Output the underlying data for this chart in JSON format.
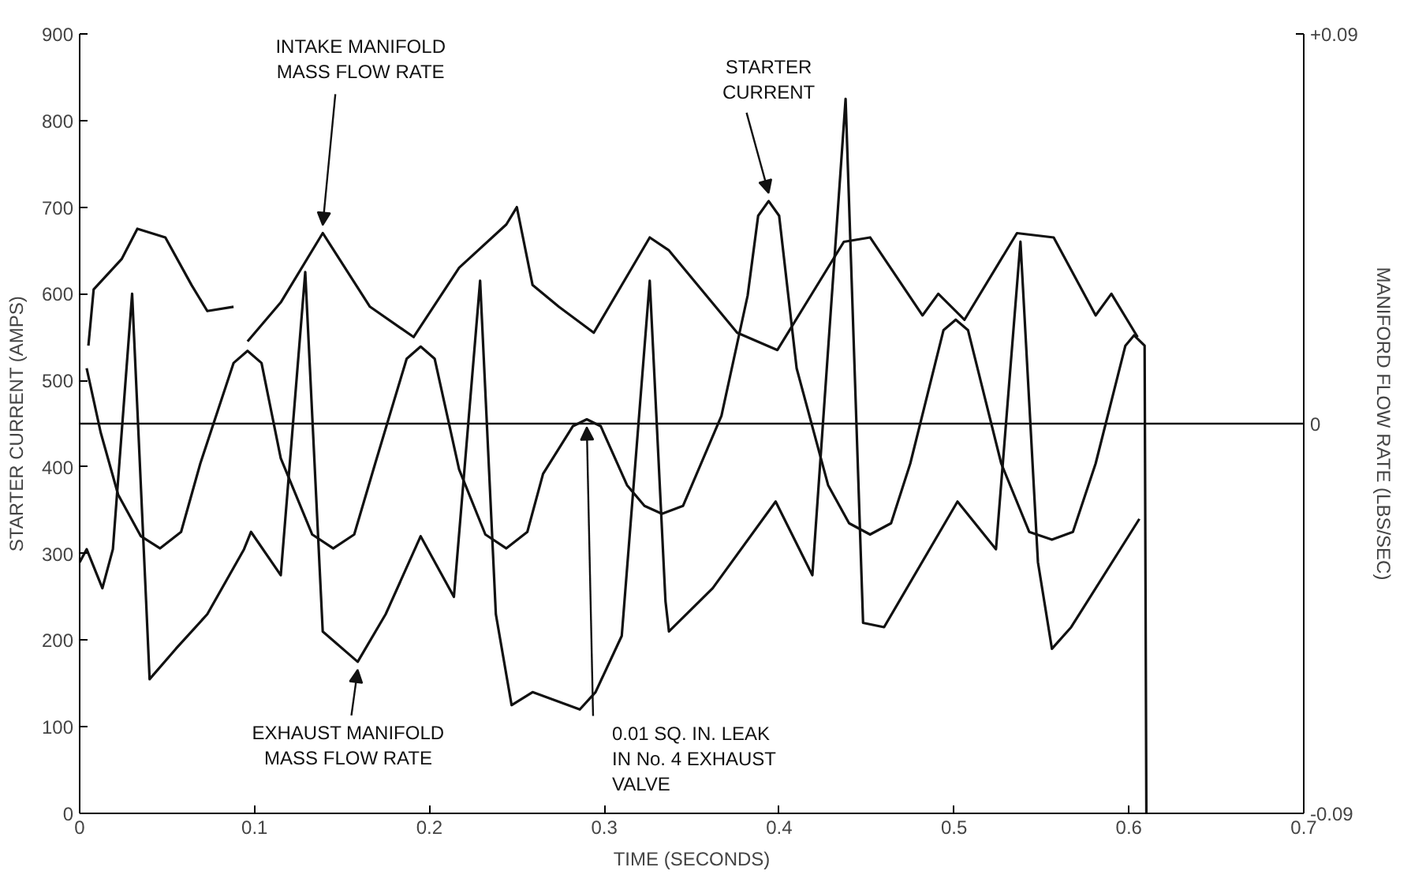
{
  "chart_data": {
    "type": "line",
    "xlabel": "TIME (SECONDS)",
    "ylabel": "STARTER CURRENT (AMPS)",
    "y2label": "MANIFORD FLOW RATE (LBS/SEC)",
    "xlim": [
      0,
      0.7
    ],
    "xticks": [
      0,
      0.1,
      0.2,
      0.3,
      0.4,
      0.5,
      0.6,
      0.7
    ],
    "ylim": [
      0,
      900
    ],
    "yticks": [
      0,
      100,
      200,
      300,
      400,
      500,
      600,
      700,
      800,
      900
    ],
    "y2lim": [
      -0.09,
      0.09
    ],
    "y2ticks": [
      {
        "value": -0.09,
        "label": "-0.09"
      },
      0,
      {
        "value": 0.09,
        "label": "+0.09"
      }
    ],
    "grid": false,
    "marker": "none",
    "line_style": "solid",
    "series": [
      {
        "color": "#111111",
        "x": [
          0.004,
          0.012,
          0.022,
          0.035,
          0.046,
          0.058,
          0.069,
          0.088,
          0.096,
          0.104,
          0.115,
          0.133,
          0.145,
          0.157,
          0.169,
          0.187,
          0.195,
          0.203,
          0.217,
          0.232,
          0.244,
          0.256,
          0.265,
          0.282,
          0.29,
          0.298,
          0.313,
          0.323,
          0.333,
          0.345,
          0.367,
          0.382,
          0.388,
          0.394,
          0.4,
          0.41,
          0.428,
          0.44,
          0.452,
          0.464,
          0.475,
          0.494,
          0.501,
          0.508,
          0.527,
          0.543,
          0.556,
          0.568,
          0.581,
          0.598,
          0.603,
          0.609,
          0.61
        ],
        "values": [
          514,
          440,
          368,
          320,
          306,
          325,
          404,
          520,
          534,
          520,
          410,
          322,
          306,
          322,
          404,
          525,
          539,
          525,
          397,
          322,
          306,
          325,
          392,
          447,
          455,
          447,
          379,
          355,
          346,
          355,
          459,
          598,
          690,
          707,
          690,
          514,
          379,
          335,
          322,
          335,
          404,
          558,
          570,
          558,
          404,
          325,
          316,
          325,
          404,
          540,
          552,
          540,
          0
        ]
      },
      {
        "color": "#111111",
        "axis": "y2",
        "x": [
          0.005,
          0.008,
          0.024,
          0.033,
          0.049,
          0.064,
          0.073,
          0.088,
          0.092,
          0.096,
          0.115,
          0.139,
          0.166,
          0.191,
          0.217,
          0.244,
          0.25,
          0.259,
          0.274,
          0.294,
          0.326,
          0.337,
          0.376,
          0.399,
          0.437,
          0.452,
          0.482,
          0.491,
          0.506,
          0.536,
          0.557,
          0.581,
          0.59,
          0.605
        ],
        "values": [
          0.018,
          0.031,
          0.038,
          0.045,
          0.043,
          0.032,
          0.026,
          0.027,
          null,
          0.019,
          0.028,
          0.044,
          0.027,
          0.02,
          0.036,
          0.046,
          0.05,
          0.032,
          0.027,
          0.021,
          0.043,
          0.04,
          0.021,
          0.017,
          0.042,
          0.043,
          0.025,
          0.03,
          0.024,
          0.044,
          0.043,
          0.025,
          0.03,
          0.02
        ]
      },
      {
        "color": "#111111",
        "axis": "y2",
        "x": [
          0,
          0.004,
          0.013,
          0.019,
          0.03,
          0.038,
          0.04,
          0.055,
          0.073,
          0.094,
          0.098,
          0.115,
          0.129,
          0.139,
          0.159,
          0.175,
          0.195,
          0.214,
          0.229,
          0.238,
          0.247,
          0.259,
          0.286,
          0.295,
          0.31,
          0.326,
          0.335,
          0.337,
          0.362,
          0.398,
          0.419,
          0.438,
          0.448,
          0.46,
          0.502,
          0.524,
          0.538,
          0.548,
          0.556,
          0.567,
          0.606
        ],
        "values": [
          -0.032,
          -0.029,
          -0.038,
          -0.029,
          0.03,
          -0.041,
          -0.059,
          -0.052,
          -0.044,
          -0.029,
          -0.025,
          -0.035,
          0.035,
          -0.048,
          -0.055,
          -0.044,
          -0.026,
          -0.04,
          0.033,
          -0.044,
          -0.065,
          -0.062,
          -0.066,
          -0.062,
          -0.049,
          0.033,
          -0.041,
          -0.048,
          -0.038,
          -0.018,
          -0.035,
          0.075,
          -0.046,
          -0.047,
          -0.018,
          -0.029,
          0.042,
          -0.032,
          -0.052,
          -0.047,
          -0.022
        ]
      }
    ],
    "ref_lines": [
      {
        "axis": "y2",
        "value": 0,
        "color": "#111111"
      }
    ],
    "annotations": [
      {
        "text": "INTAKE MANIFOLD\nMASS FLOW RATE",
        "x": 0.139,
        "y": 670
      },
      {
        "text": "STARTER\nCURRENT",
        "x": 0.394,
        "y": 707
      },
      {
        "text": "EXHAUST MANIFOLD\nMASS FLOW RATE",
        "x": 0.159,
        "y": 175
      },
      {
        "text": "0.01 SQ. IN. LEAK\nIN No. 4 EXHAUST\nVALVE",
        "x": 0.29,
        "y": 455
      }
    ]
  }
}
